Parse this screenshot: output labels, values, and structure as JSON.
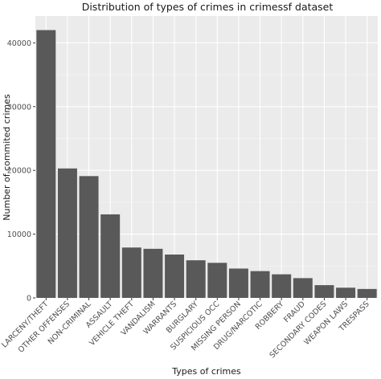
{
  "chart_data": {
    "type": "bar",
    "title": "Distribution of types of crimes in crimessf dataset",
    "xlabel": "Types of crimes",
    "ylabel": "Number of commited crimes",
    "categories": [
      "LARCENY/THEFT",
      "OTHER OFFENSES",
      "NON-CRIMINAL",
      "ASSAULT",
      "VEHICLE THEFT",
      "VANDALISM",
      "WARRANTS",
      "BURGLARY",
      "SUSPICIOUS OCC",
      "MISSING PERSON",
      "DRUG/NARCOTIC",
      "ROBBERY",
      "FRAUD",
      "SECONDARY CODES",
      "WEAPON LAWS",
      "TRESPASS"
    ],
    "values": [
      42000,
      20300,
      19100,
      13100,
      7900,
      7700,
      6800,
      5900,
      5500,
      4600,
      4200,
      3700,
      3100,
      2000,
      1600,
      1400
    ],
    "yticks": [
      0,
      10000,
      20000,
      30000,
      40000
    ],
    "ylim": [
      0,
      44200
    ],
    "grid": true,
    "colors": {
      "bar": "#595959",
      "panel": "#ebebeb",
      "grid": "#ffffff"
    }
  }
}
